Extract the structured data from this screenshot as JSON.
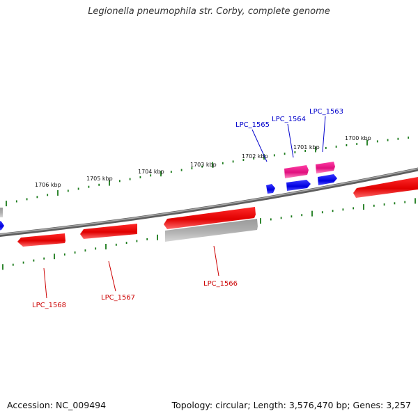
{
  "title": "Legionella pneumophila str. Corby, complete genome",
  "footer": {
    "accession": "Accession: NC_009494",
    "stats": "Topology: circular; Length: 3,576,470 bp; Genes: 3,257"
  },
  "colors": {
    "forward_gene": "#ff0000",
    "reverse_gene_blue": "#0000ff",
    "pink_gene": "#ff1493",
    "gray_gene": "#b4b4b4",
    "backbone": "#7a7a7a",
    "tick": "#1a7a1a",
    "label_forward": "#0000cc",
    "label_reverse": "#cc0000"
  },
  "scale_labels": [
    "1706 kbp",
    "1705 kbp",
    "1704 kbp",
    "1703 kbp",
    "1702 kbp",
    "1701 kbp",
    "1700 kbp"
  ],
  "gene_labels": {
    "top": [
      "LPC_1565",
      "LPC_1564",
      "LPC_1563"
    ],
    "bottom": [
      "LPC_1568",
      "LPC_1567",
      "LPC_1566"
    ]
  }
}
